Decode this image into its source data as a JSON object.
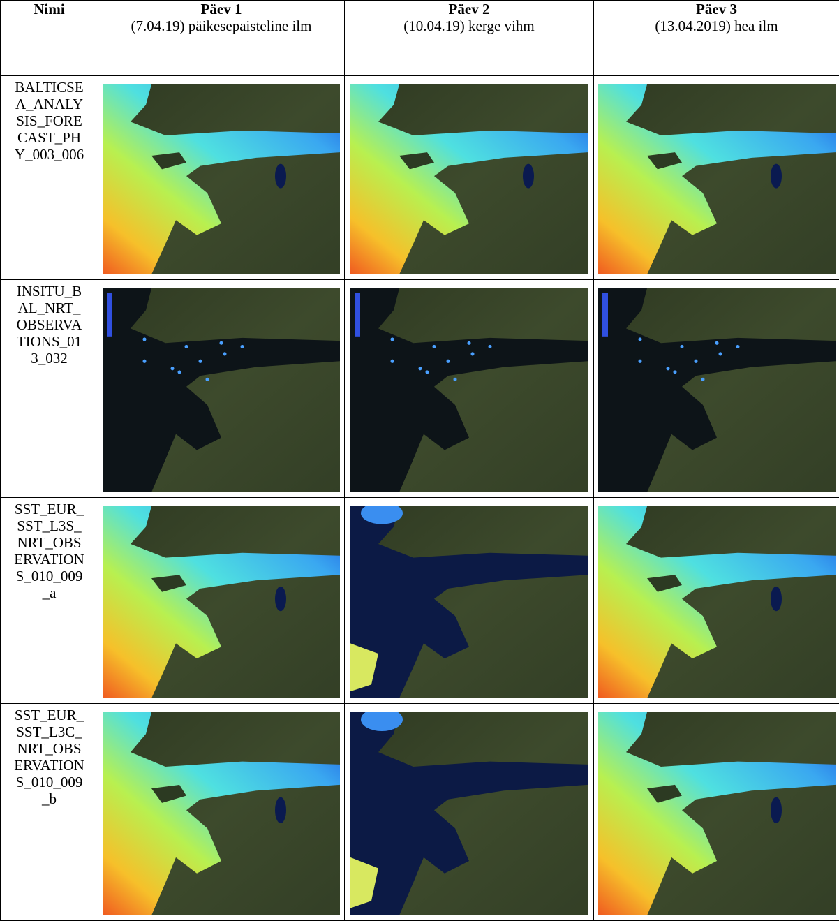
{
  "table": {
    "header": {
      "name": "Nimi",
      "days": [
        {
          "day": "Päev 1",
          "note": "(7.04.19) päikesepaisteline ilm"
        },
        {
          "day": "Päev 2",
          "note": "(10.04.19) kerge vihm"
        },
        {
          "day": "Päev 3",
          "note": "(13.04.2019) hea ilm"
        }
      ]
    },
    "rows": [
      {
        "name": "BALTICSEA_ANALYSIS_FORECAST_PHY_003_006"
      },
      {
        "name": "INSITU_BAL_NRT_OBSERVATIONS_013_032"
      },
      {
        "name": "SST_EUR_SST_L3S_NRT_OBSERVATIONS_010_009_a"
      },
      {
        "name": "SST_EUR_SST_L3C_NRT_OBSERVATIONS_010_009_b"
      }
    ]
  }
}
